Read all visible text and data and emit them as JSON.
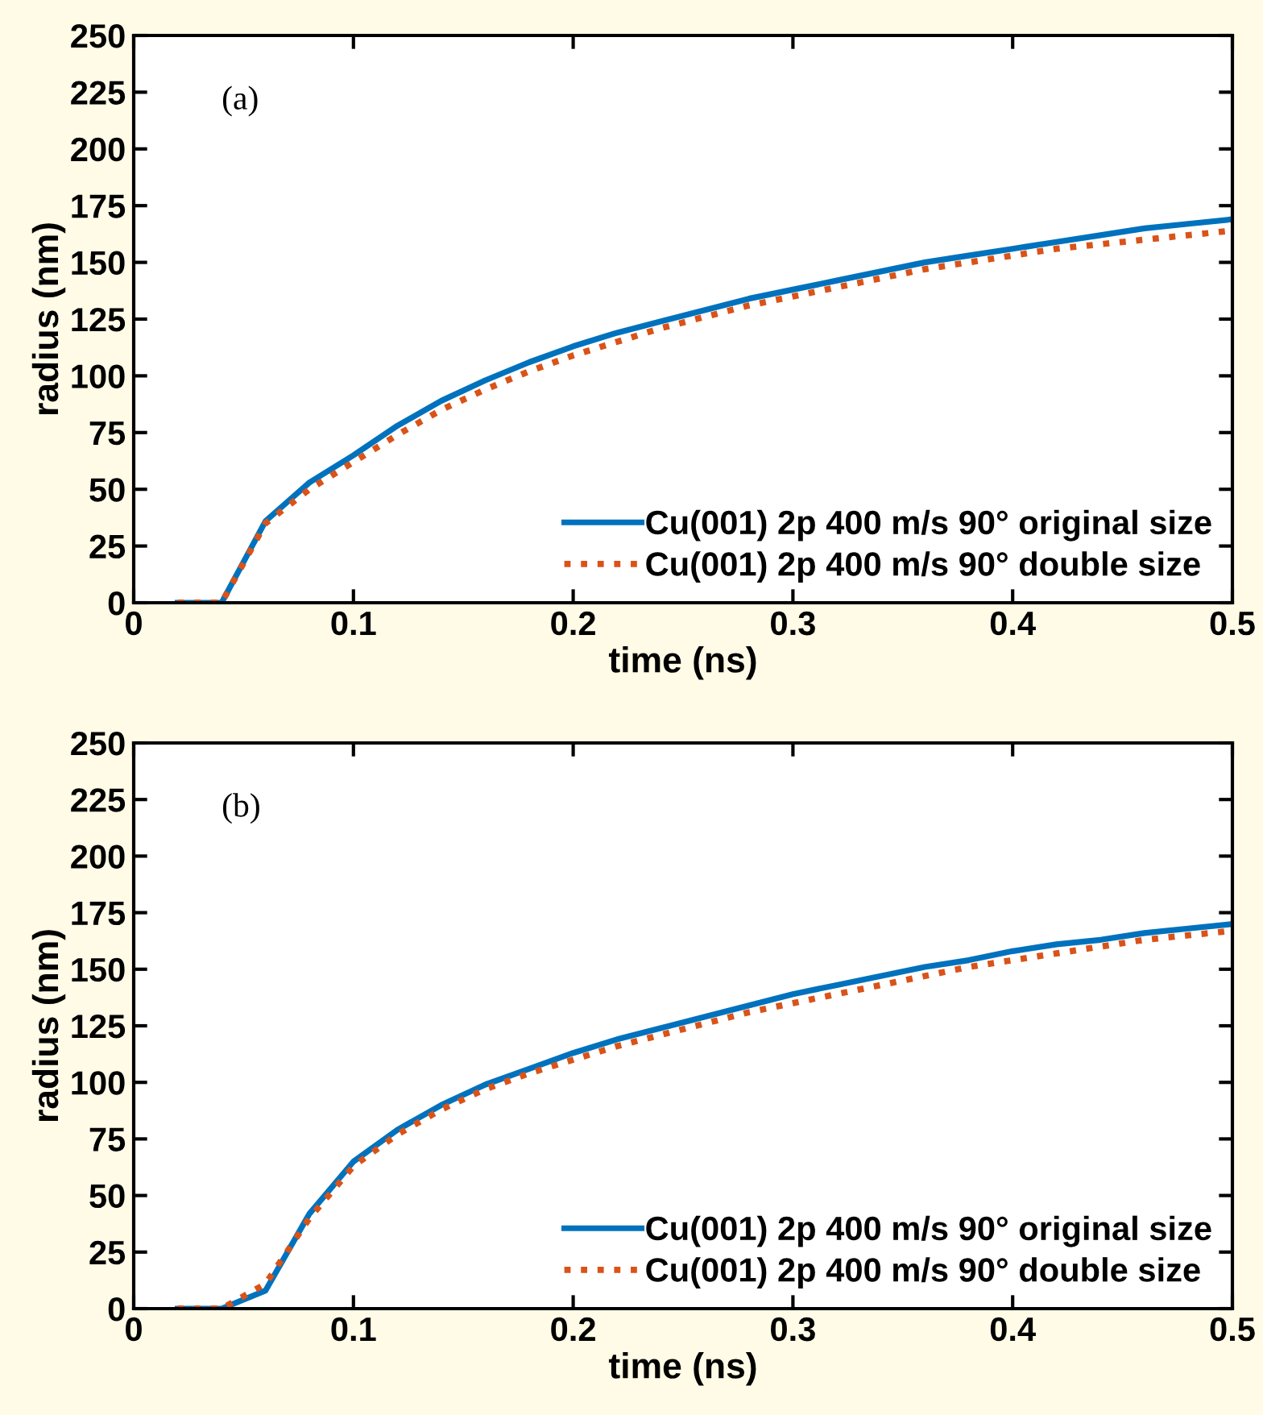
{
  "chart_data": [
    {
      "type": "line",
      "xlabel": "time (ns)",
      "ylabel": "radius (nm)",
      "annotations": [
        "(a)"
      ],
      "x": [
        0.02,
        0.04,
        0.06,
        0.08,
        0.1,
        0.12,
        0.14,
        0.16,
        0.18,
        0.2,
        0.22,
        0.24,
        0.26,
        0.28,
        0.3,
        0.32,
        0.34,
        0.36,
        0.38,
        0.4,
        0.42,
        0.44,
        0.46,
        0.48,
        0.5
      ],
      "series": [
        {
          "name": "Cu(001) 2p 400 m/s 90° original size",
          "color": "#0072bd",
          "line_style": "solid",
          "values": [
            0,
            0,
            36,
            53,
            65,
            78,
            89,
            98,
            106,
            113,
            119,
            124,
            129,
            134,
            138,
            142,
            146,
            150,
            153,
            156,
            159,
            162,
            165,
            167,
            169
          ]
        },
        {
          "name": "Cu(001) 2p 400 m/s 90° double size",
          "color": "#d95319",
          "line_style": "dotted",
          "values": [
            0,
            0,
            35,
            50,
            62,
            74,
            85,
            94,
            102,
            109,
            115,
            121,
            126,
            131,
            135,
            139,
            143,
            147,
            150,
            153,
            156,
            158,
            160,
            162,
            164
          ]
        }
      ],
      "xlim": [
        0,
        0.5
      ],
      "xticks": [
        0,
        0.1,
        0.2,
        0.3,
        0.4,
        0.5
      ],
      "ylim": [
        0,
        250
      ],
      "yticks": [
        0,
        25,
        50,
        75,
        100,
        125,
        150,
        175,
        200,
        225,
        250
      ],
      "grid": false,
      "legend": "bottom right"
    },
    {
      "type": "line",
      "xlabel": "time (ns)",
      "ylabel": "radius (nm)",
      "annotations": [
        "(b)"
      ],
      "x": [
        0.02,
        0.04,
        0.06,
        0.08,
        0.1,
        0.12,
        0.14,
        0.16,
        0.18,
        0.2,
        0.22,
        0.24,
        0.26,
        0.28,
        0.3,
        0.32,
        0.34,
        0.36,
        0.38,
        0.4,
        0.42,
        0.44,
        0.46,
        0.48,
        0.5
      ],
      "series": [
        {
          "name": "Cu(001) 2p 400 m/s 90° original size",
          "color": "#0072bd",
          "line_style": "solid",
          "values": [
            0,
            0,
            8,
            42,
            65,
            79,
            90,
            99,
            106,
            113,
            119,
            124,
            129,
            134,
            139,
            143,
            147,
            151,
            154,
            158,
            161,
            163,
            166,
            168,
            170
          ]
        },
        {
          "name": "Cu(001) 2p 400 m/s 90° double size",
          "color": "#d95319",
          "line_style": "dotted",
          "values": [
            0,
            0,
            11,
            40,
            63,
            77,
            88,
            97,
            104,
            110,
            116,
            121,
            126,
            131,
            135,
            139,
            143,
            147,
            151,
            154,
            157,
            160,
            163,
            165,
            167
          ]
        }
      ],
      "xlim": [
        0,
        0.5
      ],
      "xticks": [
        0,
        0.1,
        0.2,
        0.3,
        0.4,
        0.5
      ],
      "ylim": [
        0,
        250
      ],
      "yticks": [
        0,
        25,
        50,
        75,
        100,
        125,
        150,
        175,
        200,
        225,
        250
      ],
      "grid": false,
      "legend": "bottom right"
    }
  ]
}
